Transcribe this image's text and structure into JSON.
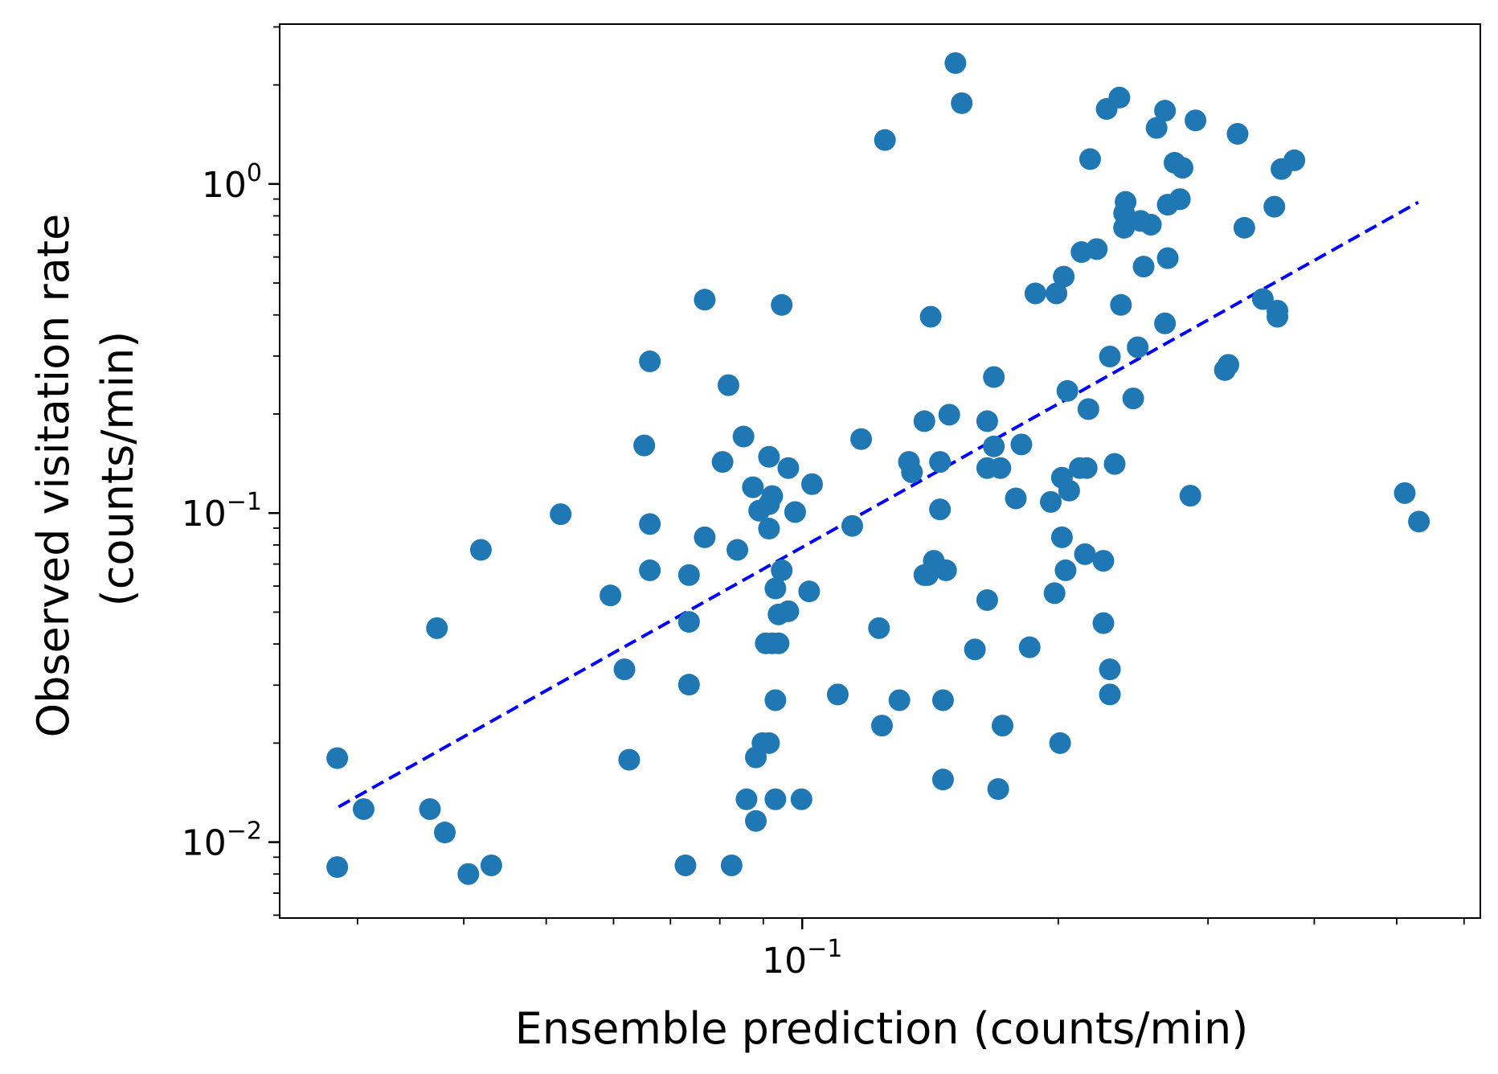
{
  "chart_data": {
    "type": "scatter",
    "xlabel": "Ensemble prediction (counts/min)",
    "ylabel_lines": [
      "Observed visitation rate",
      "(counts/min)"
    ],
    "x_scale": "log",
    "y_scale": "log",
    "xlim": [
      0.0243,
      0.627
    ],
    "ylim": [
      0.00588,
      3.06
    ],
    "grid": false,
    "colors": {
      "points": "#1f77b4",
      "fit_line": "#0000ff",
      "axes": "#000000"
    },
    "x_ticks": [
      {
        "value": 0.1,
        "base": "10",
        "exp": "−1"
      }
    ],
    "y_ticks": [
      {
        "value": 0.01,
        "base": "10",
        "exp": "−2"
      },
      {
        "value": 0.1,
        "base": "10",
        "exp": "−1"
      },
      {
        "value": 1,
        "base": "10",
        "exp": "0"
      }
    ],
    "fit_line": {
      "x": [
        0.0285,
        0.53
      ],
      "y": [
        0.0128,
        0.88
      ]
    },
    "points": [
      [
        0.0284,
        0.018
      ],
      [
        0.0284,
        0.0084
      ],
      [
        0.0305,
        0.0126
      ],
      [
        0.0365,
        0.0126
      ],
      [
        0.0372,
        0.0447
      ],
      [
        0.038,
        0.0107
      ],
      [
        0.0405,
        0.008
      ],
      [
        0.0419,
        0.0773
      ],
      [
        0.0431,
        0.0085
      ],
      [
        0.052,
        0.0992
      ],
      [
        0.0595,
        0.0562
      ],
      [
        0.0618,
        0.0335
      ],
      [
        0.0626,
        0.0178
      ],
      [
        0.0652,
        0.1605
      ],
      [
        0.0662,
        0.0926
      ],
      [
        0.0662,
        0.067
      ],
      [
        0.0662,
        0.289
      ],
      [
        0.0729,
        0.0085
      ],
      [
        0.0736,
        0.0301
      ],
      [
        0.0736,
        0.0648
      ],
      [
        0.0736,
        0.0467
      ],
      [
        0.0768,
        0.0844
      ],
      [
        0.0768,
        0.445
      ],
      [
        0.0806,
        0.143
      ],
      [
        0.0819,
        0.2447
      ],
      [
        0.0826,
        0.0085
      ],
      [
        0.0839,
        0.0773
      ],
      [
        0.0853,
        0.1708
      ],
      [
        0.086,
        0.0135
      ],
      [
        0.0875,
        0.1198
      ],
      [
        0.0882,
        0.0116
      ],
      [
        0.0882,
        0.0181
      ],
      [
        0.089,
        0.1017
      ],
      [
        0.0898,
        0.02
      ],
      [
        0.0906,
        0.0402
      ],
      [
        0.0914,
        0.1482
      ],
      [
        0.0914,
        0.0897
      ],
      [
        0.0914,
        0.1064
      ],
      [
        0.0914,
        0.02
      ],
      [
        0.0922,
        0.0402
      ],
      [
        0.0922,
        0.1126
      ],
      [
        0.093,
        0.059
      ],
      [
        0.093,
        0.027
      ],
      [
        0.093,
        0.0135
      ],
      [
        0.0938,
        0.0402
      ],
      [
        0.0938,
        0.0492
      ],
      [
        0.0946,
        0.429
      ],
      [
        0.0946,
        0.067
      ],
      [
        0.0963,
        0.0503
      ],
      [
        0.0963,
        0.137
      ],
      [
        0.0981,
        0.1007
      ],
      [
        0.0998,
        0.0135
      ],
      [
        0.1019,
        0.0578
      ],
      [
        0.1027,
        0.1224
      ],
      [
        0.1101,
        0.0281
      ],
      [
        0.1145,
        0.0914
      ],
      [
        0.1173,
        0.1678
      ],
      [
        0.1231,
        0.0447
      ],
      [
        0.1241,
        0.0226
      ],
      [
        0.1251,
        1.36
      ],
      [
        0.1301,
        0.027
      ],
      [
        0.1335,
        0.143
      ],
      [
        0.1346,
        0.133
      ],
      [
        0.1392,
        0.0648
      ],
      [
        0.1392,
        0.1902
      ],
      [
        0.1404,
        0.0648
      ],
      [
        0.1416,
        0.395
      ],
      [
        0.1428,
        0.0716
      ],
      [
        0.1452,
        0.1026
      ],
      [
        0.1452,
        0.143
      ],
      [
        0.1464,
        0.027
      ],
      [
        0.1464,
        0.0155
      ],
      [
        0.1476,
        0.067
      ],
      [
        0.1489,
        0.199
      ],
      [
        0.1514,
        2.33
      ],
      [
        0.154,
        1.76
      ],
      [
        0.1596,
        0.0385
      ],
      [
        0.165,
        0.0544
      ],
      [
        0.165,
        0.137
      ],
      [
        0.165,
        0.1902
      ],
      [
        0.168,
        0.1594
      ],
      [
        0.168,
        0.259
      ],
      [
        0.17,
        0.0145
      ],
      [
        0.171,
        0.137
      ],
      [
        0.172,
        0.0226
      ],
      [
        0.1783,
        0.1108
      ],
      [
        0.181,
        0.1616
      ],
      [
        0.1851,
        0.0391
      ],
      [
        0.188,
        0.465
      ],
      [
        0.196,
        0.1081
      ],
      [
        0.198,
        0.0571
      ],
      [
        0.199,
        0.465
      ],
      [
        0.201,
        0.02
      ],
      [
        0.202,
        0.1281
      ],
      [
        0.202,
        0.0844
      ],
      [
        0.203,
        0.523
      ],
      [
        0.204,
        0.067
      ],
      [
        0.205,
        0.235
      ],
      [
        0.206,
        0.117
      ],
      [
        0.212,
        0.137
      ],
      [
        0.213,
        0.621
      ],
      [
        0.215,
        0.075
      ],
      [
        0.216,
        0.137
      ],
      [
        0.217,
        0.207
      ],
      [
        0.218,
        1.19
      ],
      [
        0.222,
        0.634
      ],
      [
        0.226,
        0.0463
      ],
      [
        0.226,
        0.0716
      ],
      [
        0.228,
        1.69
      ],
      [
        0.23,
        0.0281
      ],
      [
        0.23,
        0.0335
      ],
      [
        0.23,
        0.299
      ],
      [
        0.233,
        0.141
      ],
      [
        0.236,
        1.83
      ],
      [
        0.237,
        0.429
      ],
      [
        0.239,
        0.736
      ],
      [
        0.239,
        0.815
      ],
      [
        0.24,
        0.882
      ],
      [
        0.245,
        0.223
      ],
      [
        0.248,
        0.319
      ],
      [
        0.25,
        0.772
      ],
      [
        0.252,
        0.561
      ],
      [
        0.257,
        0.752
      ],
      [
        0.261,
        1.48
      ],
      [
        0.267,
        0.377
      ],
      [
        0.267,
        1.67
      ],
      [
        0.269,
        0.595
      ],
      [
        0.269,
        0.865
      ],
      [
        0.274,
        1.16
      ],
      [
        0.278,
        0.899
      ],
      [
        0.28,
        1.12
      ],
      [
        0.286,
        0.1129
      ],
      [
        0.29,
        1.56
      ],
      [
        0.314,
        0.272
      ],
      [
        0.317,
        0.282
      ],
      [
        0.325,
        1.42
      ],
      [
        0.331,
        0.736
      ],
      [
        0.348,
        0.447
      ],
      [
        0.359,
        0.853
      ],
      [
        0.362,
        0.412
      ],
      [
        0.362,
        0.395
      ],
      [
        0.366,
        1.11
      ],
      [
        0.379,
        1.18
      ],
      [
        0.511,
        0.115
      ],
      [
        0.531,
        0.0942
      ]
    ]
  }
}
